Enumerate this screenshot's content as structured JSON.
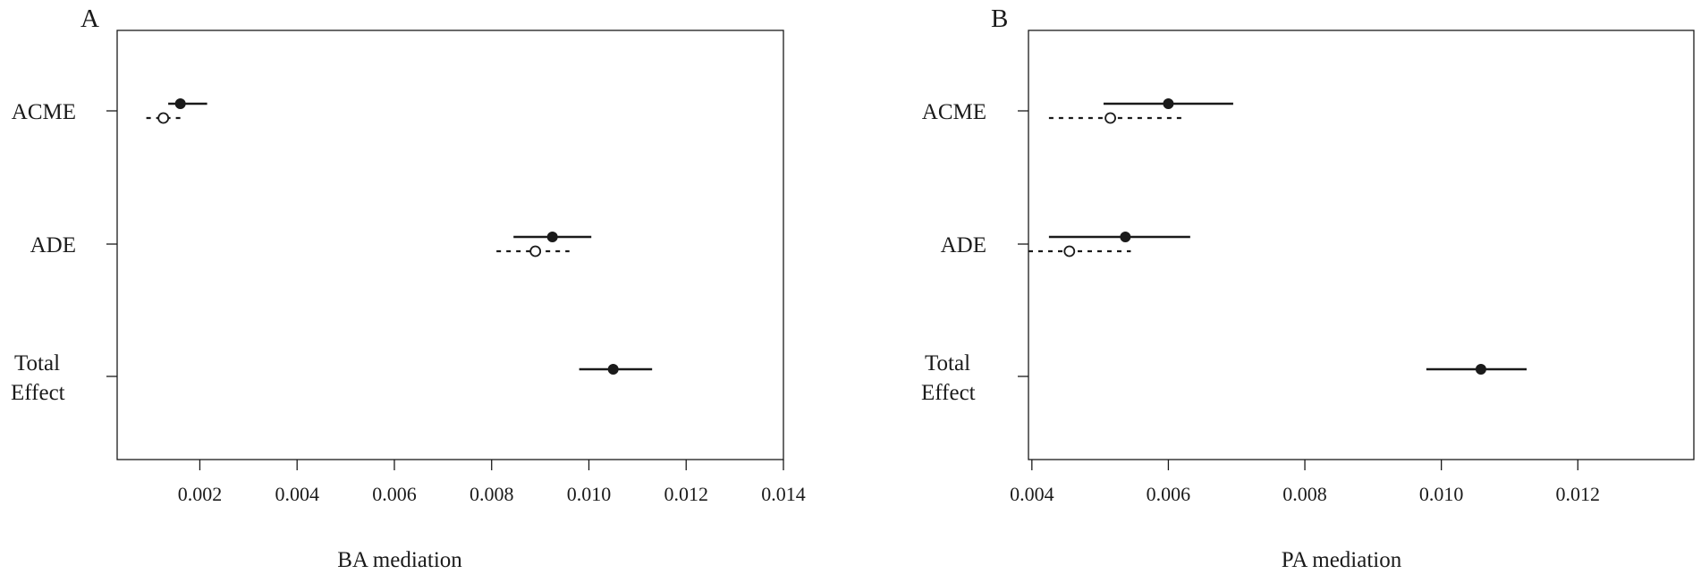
{
  "chart_data": [
    {
      "type": "scatter",
      "panel_label": "A",
      "xlabel": "BA mediation",
      "xlim": [
        0.0003,
        0.014
      ],
      "xticks": [
        0.002,
        0.004,
        0.006,
        0.008,
        0.01,
        0.012,
        0.014
      ],
      "xtick_labels": [
        "0.002",
        "0.004",
        "0.006",
        "0.008",
        "0.010",
        "0.012",
        "0.014"
      ],
      "row_labels": [
        [
          "ACME"
        ],
        [
          "ADE"
        ],
        [
          "Total",
          "Effect"
        ]
      ],
      "series": [
        {
          "style": "solid-filled",
          "points": [
            {
              "row": 0,
              "estimate": 0.0016,
              "ci": [
                0.00135,
                0.00215
              ]
            },
            {
              "row": 1,
              "estimate": 0.00925,
              "ci": [
                0.00845,
                0.01005
              ]
            },
            {
              "row": 2,
              "estimate": 0.0105,
              "ci": [
                0.0098,
                0.0113
              ]
            }
          ]
        },
        {
          "style": "dotted-open",
          "points": [
            {
              "row": 0,
              "estimate": 0.00125,
              "ci": [
                0.0009,
                0.00165
              ]
            },
            {
              "row": 1,
              "estimate": 0.0089,
              "ci": [
                0.0081,
                0.0096
              ]
            }
          ]
        }
      ]
    },
    {
      "type": "scatter",
      "panel_label": "B",
      "xlabel": "PA mediation",
      "xlim": [
        0.00395,
        0.0137
      ],
      "xticks": [
        0.004,
        0.006,
        0.008,
        0.01,
        0.012
      ],
      "xtick_labels": [
        "0.004",
        "0.006",
        "0.008",
        "0.010",
        "0.012"
      ],
      "row_labels": [
        [
          "ACME"
        ],
        [
          "ADE"
        ],
        [
          "Total",
          "Effect"
        ]
      ],
      "series": [
        {
          "style": "solid-filled",
          "points": [
            {
              "row": 0,
              "estimate": 0.006,
              "ci": [
                0.00505,
                0.00695
              ]
            },
            {
              "row": 1,
              "estimate": 0.00537,
              "ci": [
                0.00425,
                0.00632
              ]
            },
            {
              "row": 2,
              "estimate": 0.01058,
              "ci": [
                0.00978,
                0.01125
              ]
            }
          ]
        },
        {
          "style": "dotted-open",
          "points": [
            {
              "row": 0,
              "estimate": 0.00515,
              "ci": [
                0.00425,
                0.00625
              ]
            },
            {
              "row": 1,
              "estimate": 0.00455,
              "ci": [
                0.00395,
                0.00545
              ]
            }
          ]
        }
      ]
    }
  ]
}
